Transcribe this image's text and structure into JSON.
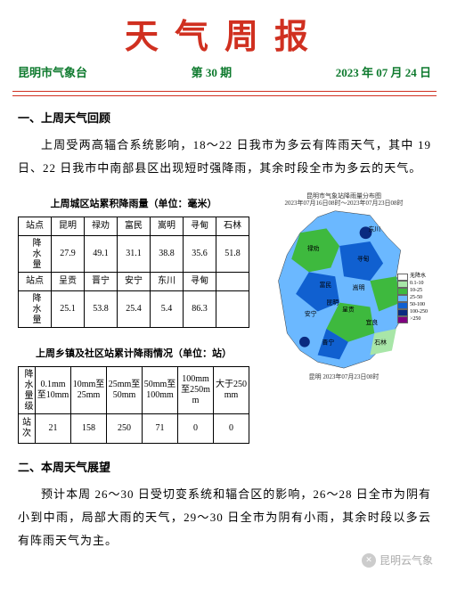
{
  "header": {
    "title": "天气周报",
    "title_color": "#d03020",
    "org": "昆明市气象台",
    "issue": "第 30 期",
    "date": "2023 年 07 月 24 日",
    "sub_color": "#0e7a2e",
    "hr_color": "#d03020"
  },
  "section1": {
    "head": "一、上周天气回顾",
    "para": "上周受两高辐合系统影响，18～22 日我市为多云有阵雨天气，其中 19 日、22 日我市中南部县区出现短时强降雨，其余时段全市为多云的天气。"
  },
  "table1": {
    "title": "上周城区站累积降雨量（单位：毫米）",
    "row_lbl_a": "站点",
    "row_lbl_b": "降水量",
    "rows": [
      {
        "sites": [
          "昆明",
          "禄劝",
          "富民",
          "嵩明",
          "寻甸",
          "石林"
        ],
        "vals": [
          "27.9",
          "49.1",
          "31.1",
          "38.8",
          "35.6",
          "51.8"
        ]
      },
      {
        "sites": [
          "呈贡",
          "晋宁",
          "安宁",
          "东川",
          "寻甸",
          ""
        ],
        "vals": [
          "25.1",
          "53.8",
          "25.4",
          "5.4",
          "86.3",
          ""
        ]
      }
    ]
  },
  "table2": {
    "title": "上周乡镇及社区站累计降雨情况（单位：站）",
    "row1_lbl": "降水量级",
    "row2_lbl": "站次",
    "bins": [
      "0.1mm至10mm",
      "10mm至25mm",
      "25mm至50mm",
      "50mm至100mm",
      "100mm至250mm",
      "大于250mm"
    ],
    "counts": [
      "21",
      "158",
      "250",
      "71",
      "0",
      "0"
    ]
  },
  "map": {
    "title1": "昆明市气象站降雨量分布图",
    "title2": "2023年07月16日08时～2023年07月23日08时",
    "footer": "昆明 2023年07月23日08时",
    "labels": [
      "东川",
      "寻甸",
      "禄劝",
      "富民",
      "嵩明",
      "呈贡",
      "昆明",
      "安宁",
      "晋宁",
      "石林",
      "宜良"
    ],
    "legend": [
      {
        "c": "#ffffff",
        "t": "无降水"
      },
      {
        "c": "#a8e6a8",
        "t": "0.1-10"
      },
      {
        "c": "#3eb93e",
        "t": "10-25"
      },
      {
        "c": "#6bb8ff",
        "t": "25-50"
      },
      {
        "c": "#1060d0",
        "t": "50-100"
      },
      {
        "c": "#0a2a80",
        "t": "100-250"
      },
      {
        "c": "#800080",
        "t": ">250"
      }
    ],
    "colors": {
      "light": "#a8e6a8",
      "mid": "#3eb93e",
      "lblue": "#6bb8ff",
      "blue": "#1060d0",
      "dark": "#0a2a80"
    }
  },
  "section2": {
    "head": "二、本周天气展望",
    "para": "预计本周 26～30 日受切变系统和辐合区的影响，26～28 日全市为阴有小到中雨，局部大雨的天气，29～30 日全市为阴有小雨，其余时段以多云有阵雨天气为主。"
  },
  "watermark": "昆明云气象"
}
